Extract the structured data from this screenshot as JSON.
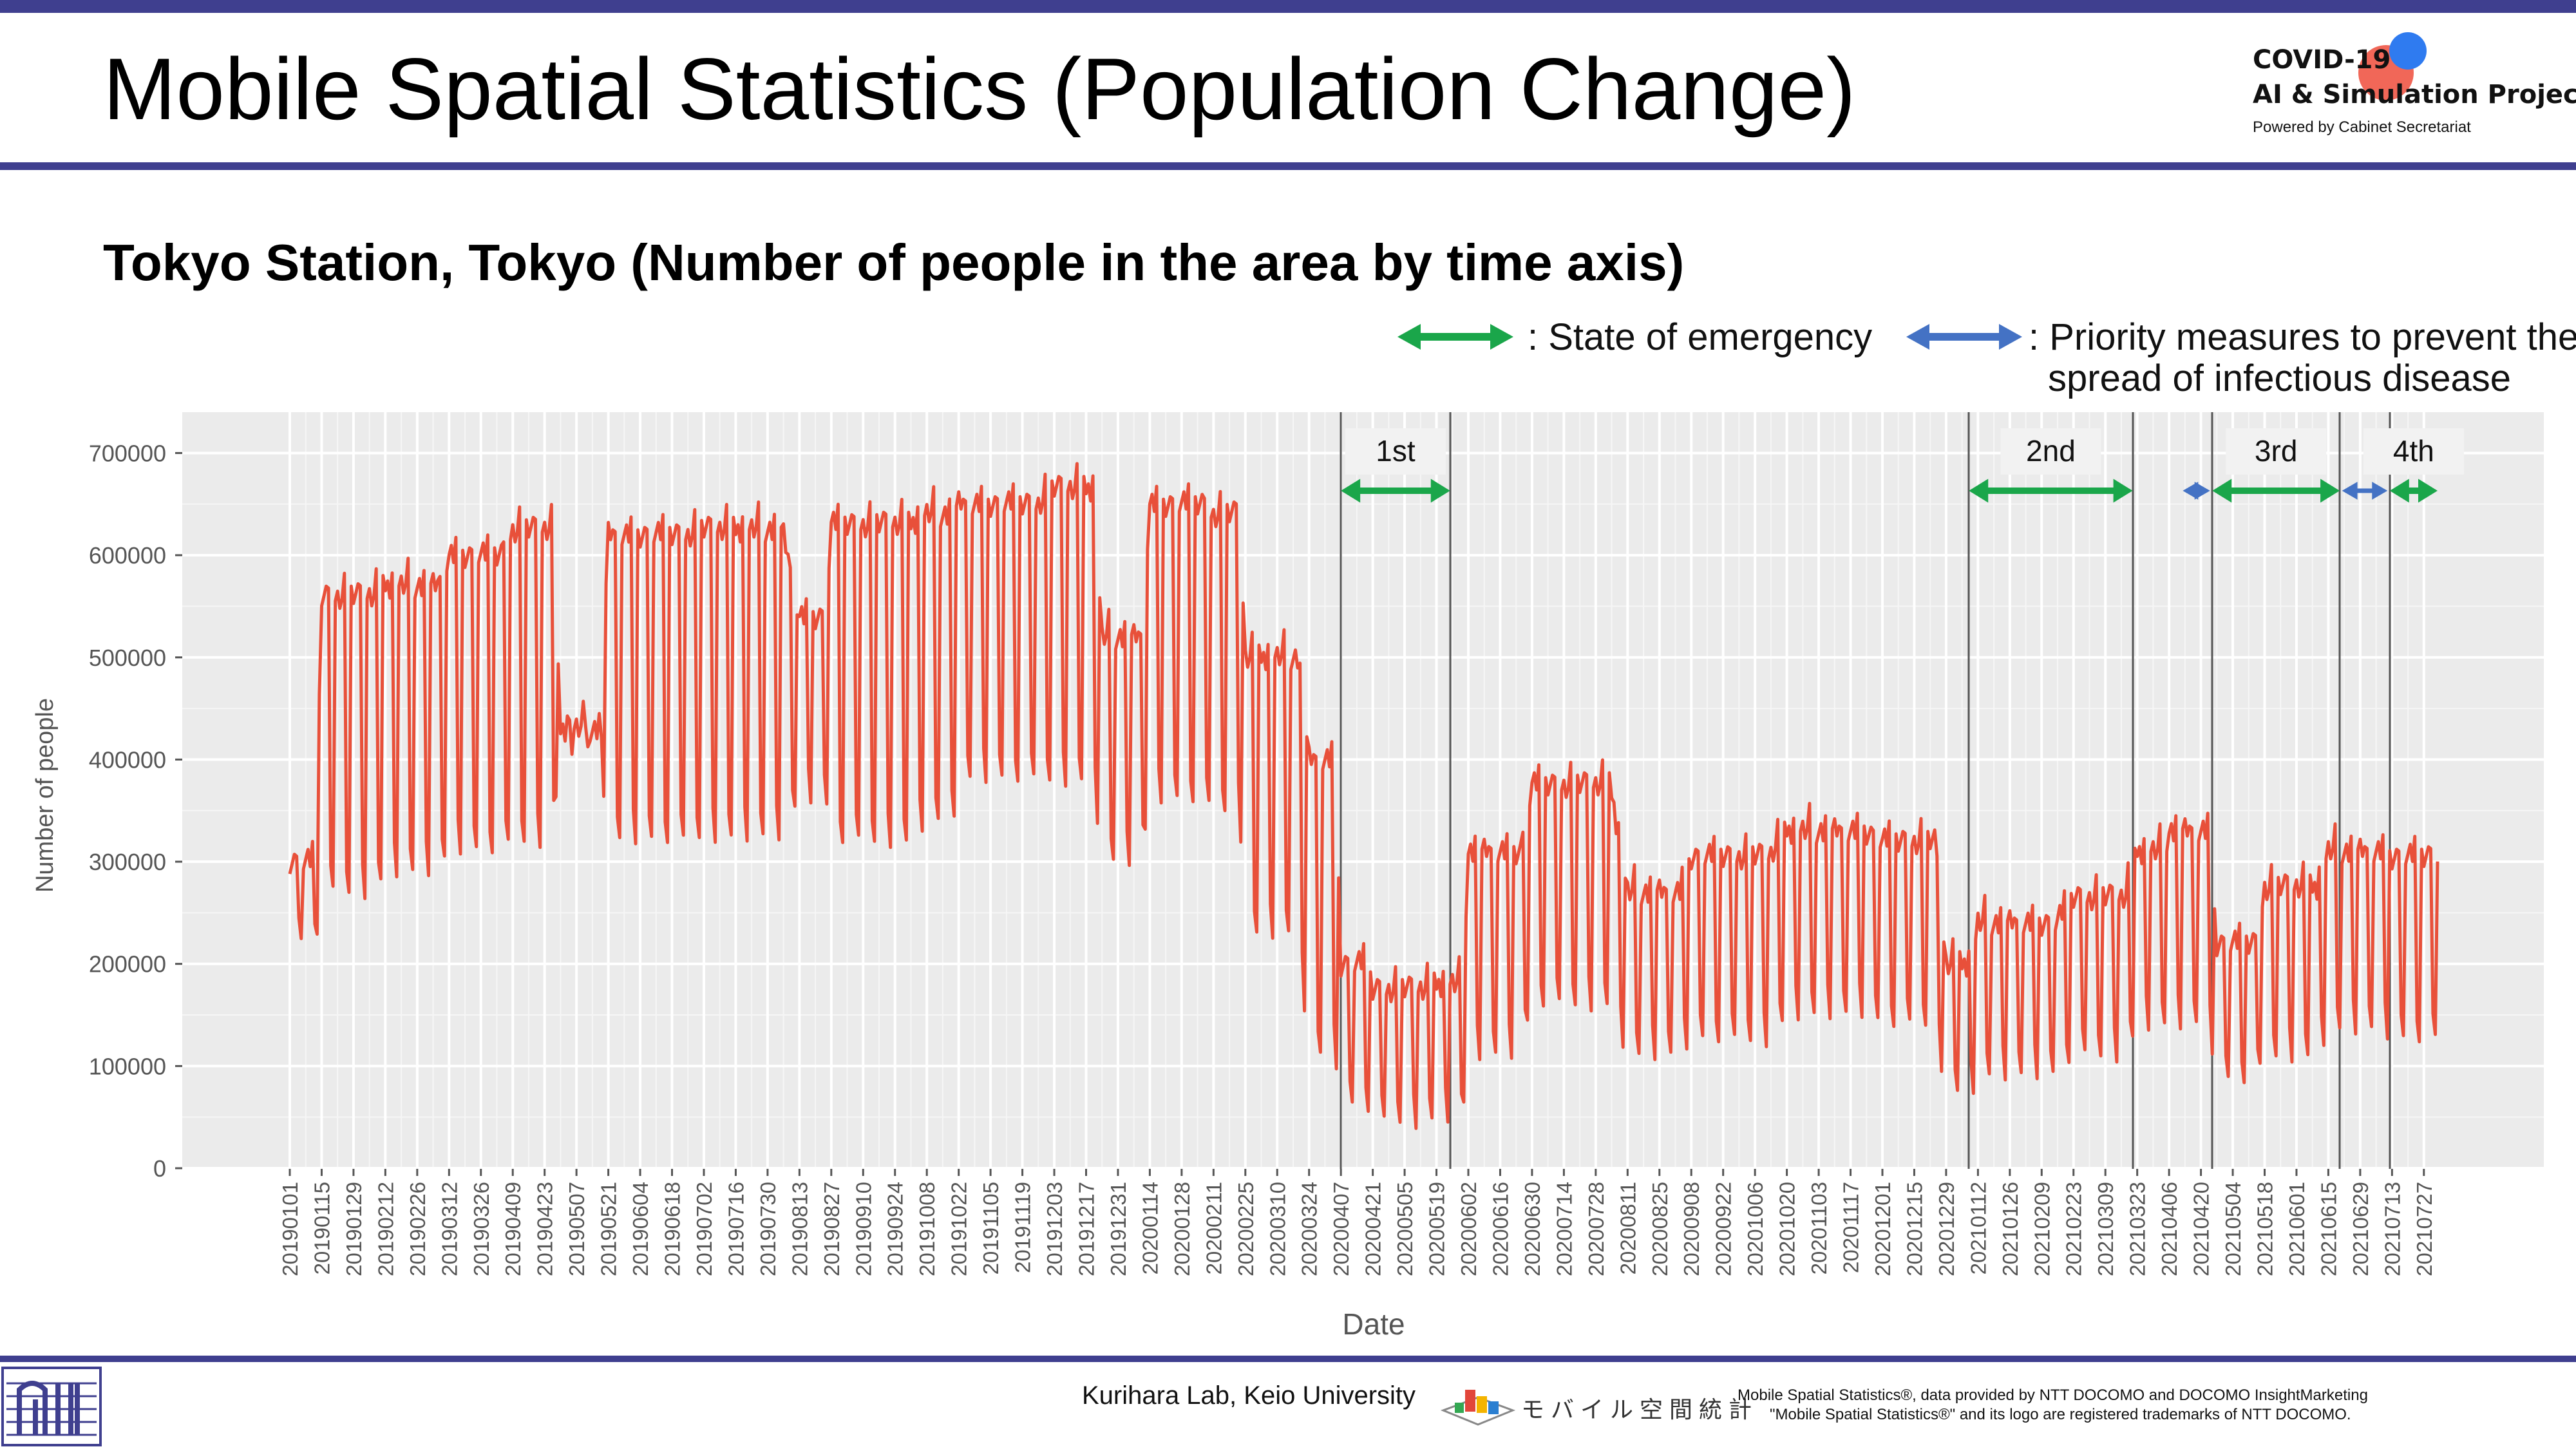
{
  "header": {
    "title": "Mobile Spatial Statistics (Population Change)",
    "logo": {
      "line1": "COVID-19",
      "line2": "AI & Simulation Project",
      "line3": "Powered by Cabinet Secretariat"
    },
    "bar_color": "#3f3f8f"
  },
  "subtitle": "Tokyo Station, Tokyo (Number of people in the area by time axis)",
  "legend": {
    "emergency": {
      "label": ": State of emergency",
      "color": "#1aa64a"
    },
    "priority": {
      "line1": ": Priority measures to prevent the",
      "line2": "spread of infectious disease",
      "color": "#4472c4"
    }
  },
  "chart_data": {
    "type": "line",
    "title": "",
    "xlabel": "Date",
    "ylabel": "Number of people",
    "ylim": [
      0,
      740000
    ],
    "yticks": [
      0,
      100000,
      200000,
      300000,
      400000,
      500000,
      600000,
      700000
    ],
    "ytick_labels": [
      "0",
      "100000",
      "200000",
      "300000",
      "400000",
      "500000",
      "600000",
      "700000"
    ],
    "grid": true,
    "line_color": "#e8503a",
    "date_range": [
      "2019-01-01",
      "2021-08-02"
    ],
    "xtick_labels": [
      "20190101",
      "20190115",
      "20190129",
      "20190212",
      "20190226",
      "20190312",
      "20190326",
      "20190409",
      "20190423",
      "20190507",
      "20190521",
      "20190604",
      "20190618",
      "20190702",
      "20190716",
      "20190730",
      "20190813",
      "20190827",
      "20190910",
      "20190924",
      "20191008",
      "20191022",
      "20191105",
      "20191119",
      "20191203",
      "20191217",
      "20191231",
      "20200114",
      "20200128",
      "20200211",
      "20200225",
      "20200310",
      "20200324",
      "20200407",
      "20200421",
      "20200505",
      "20200519",
      "20200602",
      "20200616",
      "20200630",
      "20200714",
      "20200728",
      "20200811",
      "20200825",
      "20200908",
      "20200922",
      "20201006",
      "20201020",
      "20201103",
      "20201117",
      "20201201",
      "20201215",
      "20201229",
      "20210112",
      "20210126",
      "20210209",
      "20210223",
      "20210309",
      "20210323",
      "20210406",
      "20210420",
      "20210504",
      "20210518",
      "20210601",
      "20210615",
      "20210629",
      "20210713",
      "20210727"
    ],
    "periods": [
      {
        "label": "1st",
        "kind": "emergency",
        "start": "2020-04-07",
        "end": "2020-05-25"
      },
      {
        "label": "2nd",
        "kind": "emergency",
        "start": "2021-01-08",
        "end": "2021-03-21"
      },
      {
        "label": "",
        "kind": "priority",
        "start": "2021-04-12",
        "end": "2021-04-24"
      },
      {
        "label": "3rd",
        "kind": "emergency",
        "start": "2021-04-25",
        "end": "2021-06-20"
      },
      {
        "label": "",
        "kind": "priority",
        "start": "2021-06-21",
        "end": "2021-07-11"
      },
      {
        "label": "4th",
        "kind": "emergency",
        "start": "2021-07-12",
        "end": "2021-08-02"
      }
    ],
    "series": [
      {
        "weekly_values": [
          {
            "week_of": "2019-01-01",
            "weekday": 300000,
            "weekend": 220000
          },
          {
            "week_of": "2019-01-15",
            "weekday": 560000,
            "weekend": 270000
          },
          {
            "week_of": "2019-02-12",
            "weekday": 570000,
            "weekend": 290000
          },
          {
            "week_of": "2019-03-12",
            "weekday": 600000,
            "weekend": 310000
          },
          {
            "week_of": "2019-04-09",
            "weekday": 625000,
            "weekend": 320000
          },
          {
            "week_of": "2019-04-30",
            "weekday": 430000,
            "weekend": 410000
          },
          {
            "week_of": "2019-05-21",
            "weekday": 620000,
            "weekend": 320000
          },
          {
            "week_of": "2019-07-02",
            "weekday": 625000,
            "weekend": 325000
          },
          {
            "week_of": "2019-08-13",
            "weekday": 540000,
            "weekend": 360000
          },
          {
            "week_of": "2019-08-27",
            "weekday": 630000,
            "weekend": 320000
          },
          {
            "week_of": "2019-10-08",
            "weekday": 640000,
            "weekend": 340000
          },
          {
            "week_of": "2019-10-22",
            "weekday": 650000,
            "weekend": 380000
          },
          {
            "week_of": "2019-12-03",
            "weekday": 665000,
            "weekend": 380000
          },
          {
            "week_of": "2019-12-24",
            "weekday": 520000,
            "weekend": 300000
          },
          {
            "week_of": "2020-01-14",
            "weekday": 650000,
            "weekend": 360000
          },
          {
            "week_of": "2020-02-11",
            "weekday": 640000,
            "weekend": 350000
          },
          {
            "week_of": "2020-02-25",
            "weekday": 500000,
            "weekend": 230000
          },
          {
            "week_of": "2020-03-24",
            "weekday": 400000,
            "weekend": 110000
          },
          {
            "week_of": "2020-04-07",
            "weekday": 200000,
            "weekend": 60000
          },
          {
            "week_of": "2020-04-21",
            "weekday": 175000,
            "weekend": 45000
          },
          {
            "week_of": "2020-05-19",
            "weekday": 180000,
            "weekend": 50000
          },
          {
            "week_of": "2020-06-02",
            "weekday": 310000,
            "weekend": 110000
          },
          {
            "week_of": "2020-06-30",
            "weekday": 375000,
            "weekend": 160000
          },
          {
            "week_of": "2020-08-11",
            "weekday": 270000,
            "weekend": 110000
          },
          {
            "week_of": "2020-09-08",
            "weekday": 305000,
            "weekend": 125000
          },
          {
            "week_of": "2020-10-20",
            "weekday": 330000,
            "weekend": 150000
          },
          {
            "week_of": "2020-12-01",
            "weekday": 320000,
            "weekend": 140000
          },
          {
            "week_of": "2020-12-29",
            "weekday": 200000,
            "weekend": 75000
          },
          {
            "week_of": "2021-01-12",
            "weekday": 240000,
            "weekend": 90000
          },
          {
            "week_of": "2021-02-23",
            "weekday": 265000,
            "weekend": 110000
          },
          {
            "week_of": "2021-03-23",
            "weekday": 310000,
            "weekend": 140000
          },
          {
            "week_of": "2021-04-06",
            "weekday": 330000,
            "weekend": 140000
          },
          {
            "week_of": "2021-04-27",
            "weekday": 220000,
            "weekend": 85000
          },
          {
            "week_of": "2021-05-18",
            "weekday": 275000,
            "weekend": 110000
          },
          {
            "week_of": "2021-06-15",
            "weekday": 310000,
            "weekend": 135000
          },
          {
            "week_of": "2021-07-13",
            "weekday": 305000,
            "weekend": 125000
          }
        ]
      }
    ]
  },
  "footer": {
    "credit": "Kurihara Lab, Keio University",
    "mobile_logo_text": "モバイル空間統計",
    "note1": "Mobile Spatial Statistics®, data provided by NTT DOCOMO and DOCOMO InsightMarketing",
    "note2": "\"Mobile Spatial Statistics®\" and its logo are registered trademarks of NTT DOCOMO."
  }
}
